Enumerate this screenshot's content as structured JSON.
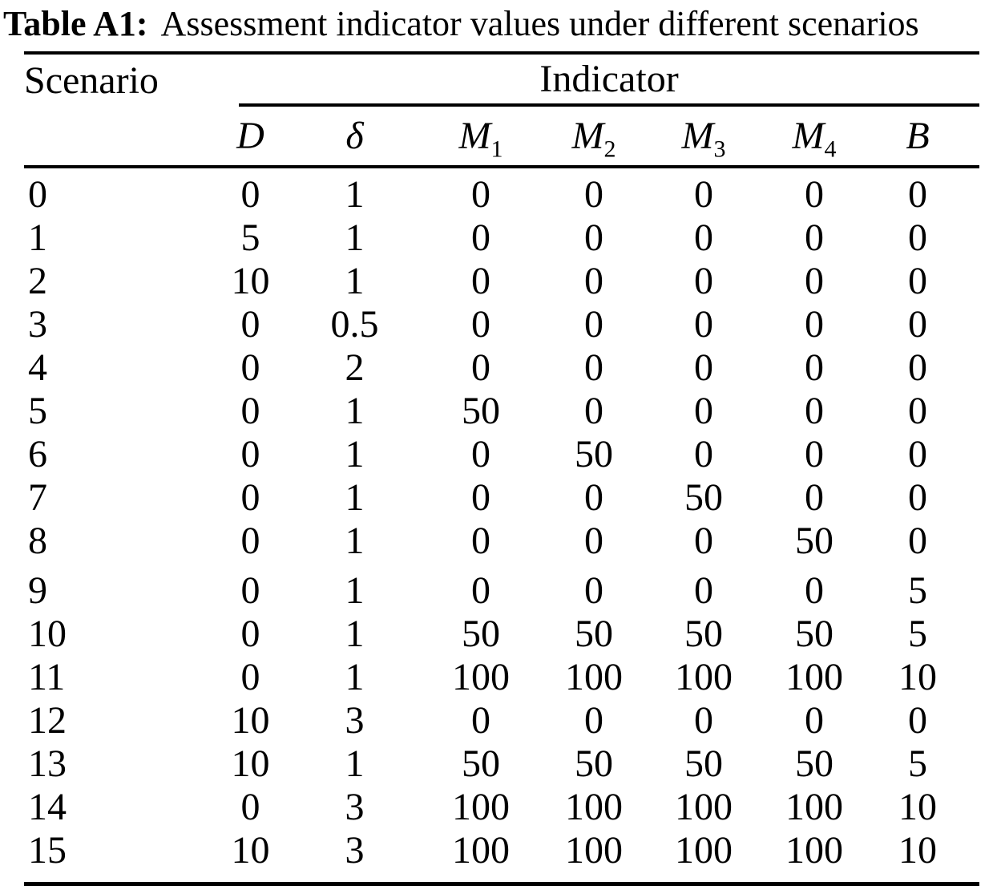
{
  "caption": {
    "label": "Table A1:",
    "text": "Assessment indicator values under different scenarios"
  },
  "table": {
    "scenario_header": "Scenario",
    "indicator_header": "Indicator",
    "columns": [
      {
        "base": "D",
        "sub": ""
      },
      {
        "base": "δ",
        "sub": ""
      },
      {
        "base": "M",
        "sub": "1"
      },
      {
        "base": "M",
        "sub": "2"
      },
      {
        "base": "M",
        "sub": "3"
      },
      {
        "base": "M",
        "sub": "4"
      },
      {
        "base": "B",
        "sub": ""
      }
    ],
    "rows": [
      {
        "scenario": "0",
        "values": [
          "0",
          "1",
          "0",
          "0",
          "0",
          "0",
          "0"
        ]
      },
      {
        "scenario": "1",
        "values": [
          "5",
          "1",
          "0",
          "0",
          "0",
          "0",
          "0"
        ]
      },
      {
        "scenario": "2",
        "values": [
          "10",
          "1",
          "0",
          "0",
          "0",
          "0",
          "0"
        ]
      },
      {
        "scenario": "3",
        "values": [
          "0",
          "0.5",
          "0",
          "0",
          "0",
          "0",
          "0"
        ]
      },
      {
        "scenario": "4",
        "values": [
          "0",
          "2",
          "0",
          "0",
          "0",
          "0",
          "0"
        ]
      },
      {
        "scenario": "5",
        "values": [
          "0",
          "1",
          "50",
          "0",
          "0",
          "0",
          "0"
        ]
      },
      {
        "scenario": "6",
        "values": [
          "0",
          "1",
          "0",
          "50",
          "0",
          "0",
          "0"
        ]
      },
      {
        "scenario": "7",
        "values": [
          "0",
          "1",
          "0",
          "0",
          "50",
          "0",
          "0"
        ]
      },
      {
        "scenario": "8",
        "values": [
          "0",
          "1",
          "0",
          "0",
          "0",
          "50",
          "0"
        ]
      },
      {
        "scenario": "9",
        "values": [
          "0",
          "1",
          "0",
          "0",
          "0",
          "0",
          "5"
        ]
      },
      {
        "scenario": "10",
        "values": [
          "0",
          "1",
          "50",
          "50",
          "50",
          "50",
          "5"
        ]
      },
      {
        "scenario": "11",
        "values": [
          "0",
          "1",
          "100",
          "100",
          "100",
          "100",
          "10"
        ]
      },
      {
        "scenario": "12",
        "values": [
          "10",
          "3",
          "0",
          "0",
          "0",
          "0",
          "0"
        ]
      },
      {
        "scenario": "13",
        "values": [
          "10",
          "1",
          "50",
          "50",
          "50",
          "50",
          "5"
        ]
      },
      {
        "scenario": "14",
        "values": [
          "0",
          "3",
          "100",
          "100",
          "100",
          "100",
          "10"
        ]
      },
      {
        "scenario": "15",
        "values": [
          "10",
          "3",
          "100",
          "100",
          "100",
          "100",
          "10"
        ]
      }
    ]
  }
}
